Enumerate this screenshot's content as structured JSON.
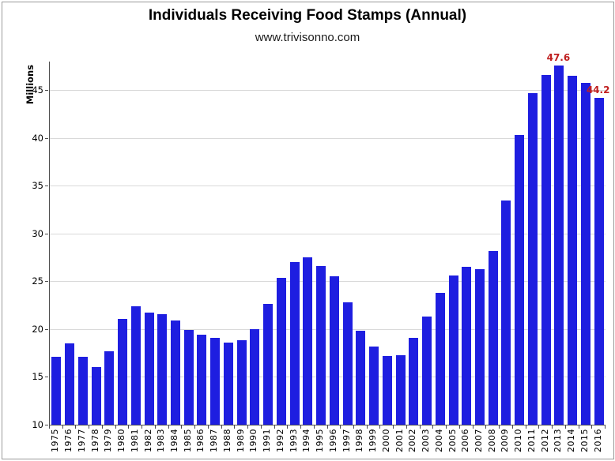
{
  "header": {
    "title": "Individuals Receiving Food Stamps (Annual)",
    "subtitle": "www.trivisonno.com"
  },
  "chart_data": {
    "type": "bar",
    "title": "Individuals Receiving Food Stamps (Annual)",
    "subtitle": "www.trivisonno.com",
    "xlabel": "",
    "ylabel": "Millions",
    "ylim": [
      10,
      48
    ],
    "yticks": [
      10,
      15,
      20,
      25,
      30,
      35,
      40,
      45
    ],
    "grid": "horizontal-light-gray",
    "legend": "none",
    "bar_color": "#1e1ee0",
    "grid_color": "#d9d9d9",
    "axis_color": "#4d4d4d",
    "data_label_color": "#c02020",
    "categories": [
      "1975",
      "1976",
      "1977",
      "1978",
      "1979",
      "1980",
      "1981",
      "1982",
      "1983",
      "1984",
      "1985",
      "1986",
      "1987",
      "1988",
      "1989",
      "1990",
      "1991",
      "1992",
      "1993",
      "1994",
      "1995",
      "1996",
      "1997",
      "1998",
      "1999",
      "2000",
      "2001",
      "2002",
      "2003",
      "2004",
      "2005",
      "2006",
      "2007",
      "2008",
      "2009",
      "2010",
      "2011",
      "2012",
      "2013",
      "2014",
      "2015",
      "2016"
    ],
    "values": [
      17.1,
      18.5,
      17.1,
      16.0,
      17.7,
      21.1,
      22.4,
      21.7,
      21.6,
      20.9,
      19.9,
      19.4,
      19.1,
      18.6,
      18.8,
      20.0,
      22.6,
      25.4,
      27.0,
      27.5,
      26.6,
      25.5,
      22.8,
      19.8,
      18.2,
      17.2,
      17.3,
      19.1,
      21.3,
      23.8,
      25.6,
      26.5,
      26.3,
      28.2,
      33.5,
      40.3,
      44.7,
      46.6,
      47.6,
      46.5,
      45.8,
      44.2
    ],
    "annotations": [
      {
        "category": "2013",
        "text": "47.6"
      },
      {
        "category": "2016",
        "text": "44.2"
      }
    ]
  }
}
